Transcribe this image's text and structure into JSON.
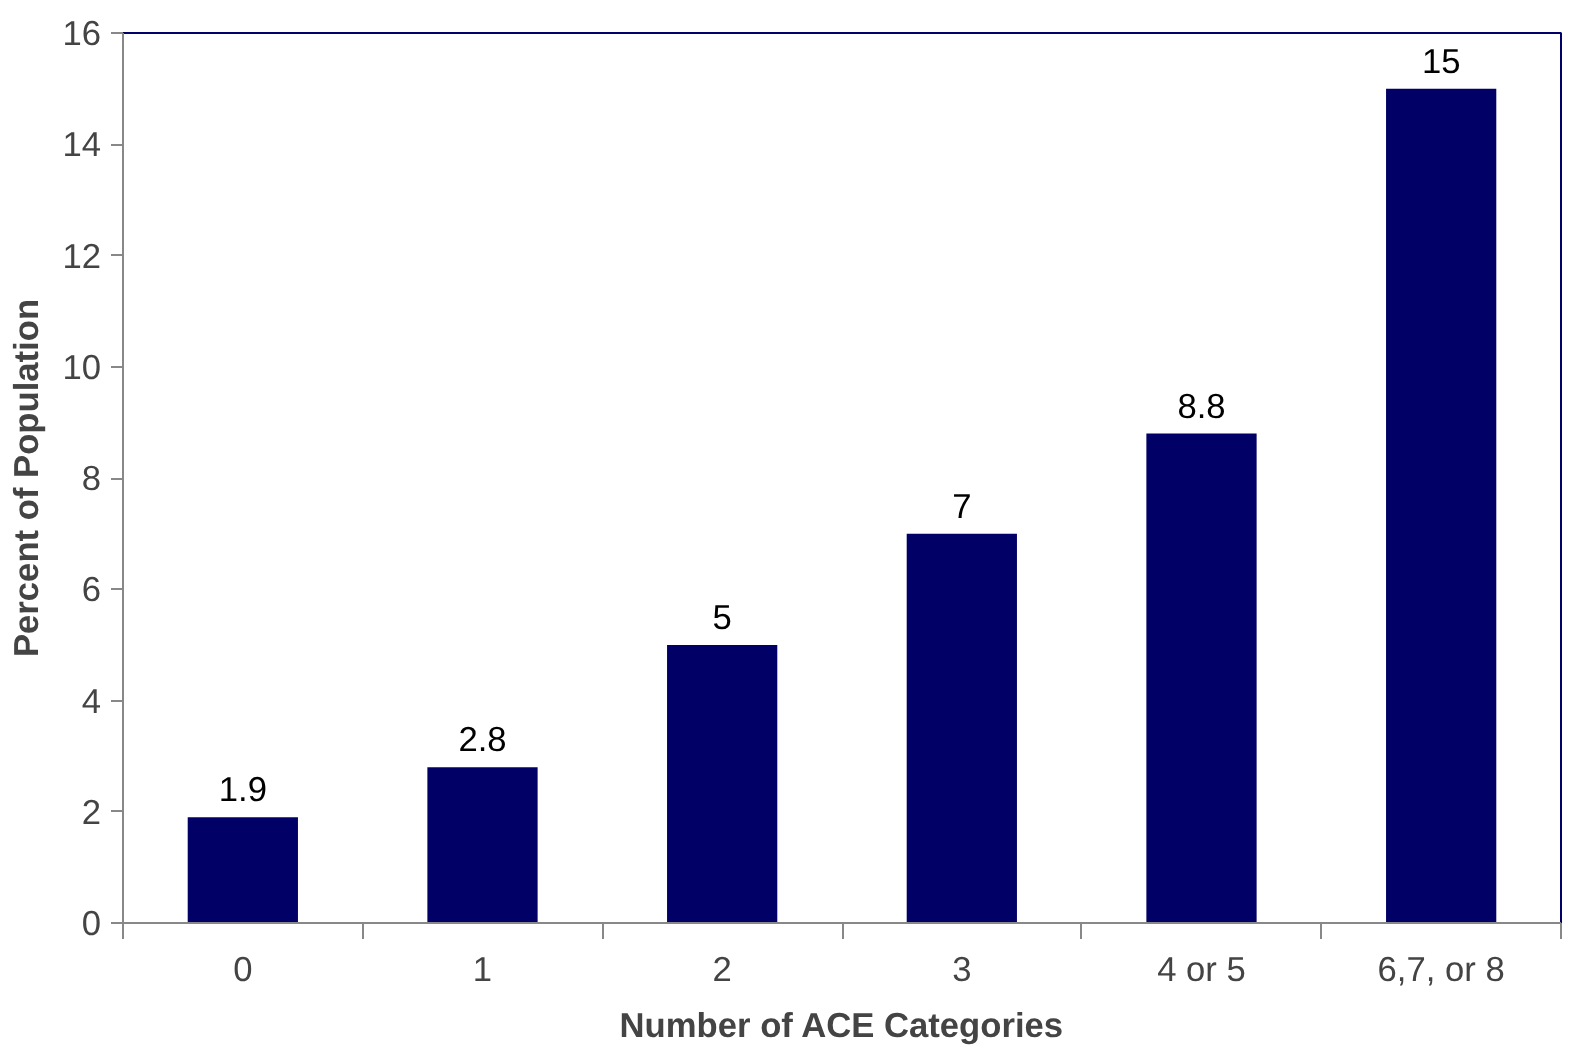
{
  "chart_data": {
    "type": "bar",
    "xlabel": "Number of ACE Categories",
    "ylabel": "Percent of Population",
    "categories": [
      "0",
      "1",
      "2",
      "3",
      "4 or 5",
      "6,7, or 8"
    ],
    "values": [
      1.9,
      2.8,
      5,
      7,
      8.8,
      15
    ],
    "color": "#000066",
    "ylim": [
      0,
      16
    ],
    "yticks": [
      0,
      2,
      4,
      6,
      8,
      10,
      12,
      14,
      16
    ],
    "grid": false,
    "data_labels": true
  }
}
